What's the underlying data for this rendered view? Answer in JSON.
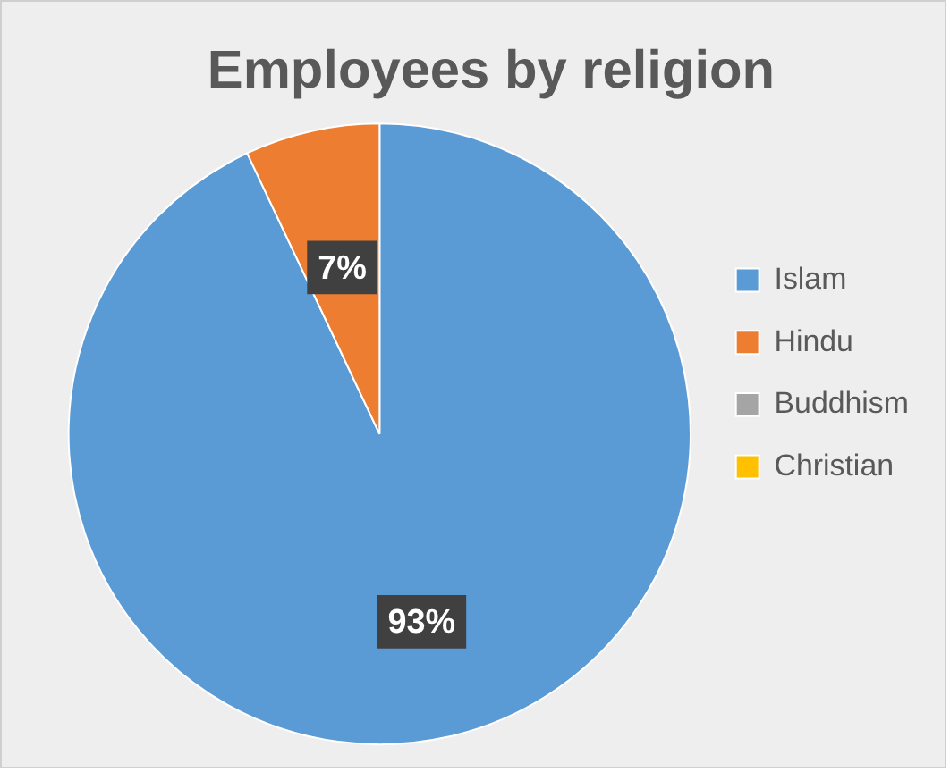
{
  "chart_data": {
    "type": "pie",
    "title": "Employees by religion",
    "categories": [
      "Islam",
      "Hindu",
      "Buddhism",
      "Christian"
    ],
    "values": [
      93,
      7,
      0,
      0
    ],
    "value_labels": [
      "93%",
      "7%",
      null,
      null
    ],
    "colors": [
      "#5b9bd5",
      "#ed7d31",
      "#a5a5a5",
      "#ffc000"
    ],
    "legend": "right"
  }
}
